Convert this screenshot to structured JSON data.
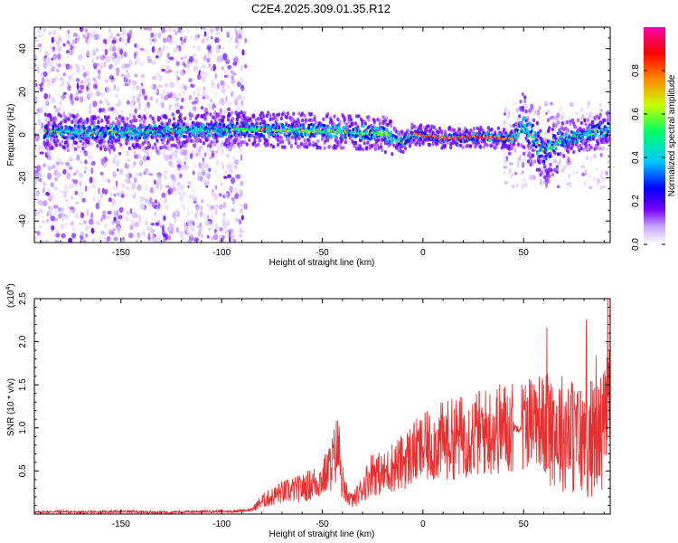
{
  "title": "C2E4.2025.309.01.35.R12",
  "chart_data": [
    {
      "type": "heatmap",
      "xlabel": "Height of straight line (km)",
      "ylabel": "Frequency (Hz)",
      "xlim": [
        -193,
        93
      ],
      "ylim": [
        -50,
        50
      ],
      "xticks": [
        -150,
        -100,
        -50,
        0,
        50
      ],
      "yticks": [
        -40,
        -20,
        0,
        20,
        40
      ],
      "colorbar": {
        "label": "Normalized spectral amplitude",
        "range": [
          0,
          1
        ],
        "ticks": [
          0.0,
          0.2,
          0.4,
          0.6,
          0.8
        ],
        "tick_labels": [
          "0.0",
          "0.2",
          "0.4",
          "0.6",
          "0.8"
        ],
        "colors": [
          "#ffffff",
          "#b388ff",
          "#6a00ff",
          "#0000ff",
          "#00c8ff",
          "#00ff66",
          "#c8ff00",
          "#ff8800",
          "#ff0000",
          "#ff00aa"
        ]
      },
      "ridge": [
        {
          "x": -180,
          "f": 1.5
        },
        {
          "x": -150,
          "f": 1.0
        },
        {
          "x": -120,
          "f": 2.0
        },
        {
          "x": -90,
          "f": 2.5
        },
        {
          "x": -60,
          "f": 2.0
        },
        {
          "x": -40,
          "f": 1.5
        },
        {
          "x": -20,
          "f": 0.5
        },
        {
          "x": -10,
          "f": -3.5
        },
        {
          "x": -5,
          "f": 0.5
        },
        {
          "x": 10,
          "f": -1.5
        },
        {
          "x": 30,
          "f": -1.0
        },
        {
          "x": 45,
          "f": -2.0
        },
        {
          "x": 50,
          "f": 5.0
        },
        {
          "x": 60,
          "f": -8.0
        },
        {
          "x": 70,
          "f": -2.0
        },
        {
          "x": 80,
          "f": 0.0
        },
        {
          "x": 92,
          "f": 3.0
        }
      ]
    },
    {
      "type": "line",
      "xlabel": "Height of straight line (km)",
      "ylabel": "SNR (10 * v/v)",
      "yscale_label": "(x10^4)",
      "xlim": [
        -193,
        93
      ],
      "ylim": [
        0,
        2.5
      ],
      "xticks": [
        -150,
        -100,
        -50,
        0,
        50
      ],
      "yticks": [
        0.5,
        1.0,
        1.5,
        2.0,
        2.5
      ],
      "ytick_labels": [
        "0.5",
        "1.0",
        "1.5",
        "2.0",
        "2.5"
      ],
      "color": "#e83030",
      "series": [
        {
          "x": [
            -193,
            -180,
            -170,
            -150,
            -130,
            -110,
            -95,
            -85,
            -80,
            -70,
            -60,
            -50,
            -45,
            -42,
            -40,
            -35,
            -30,
            -25,
            -20,
            -15,
            -10,
            -5,
            0,
            10,
            20,
            30,
            40,
            48,
            50,
            55,
            60,
            65,
            70,
            75,
            80,
            85,
            90,
            93
          ],
          "y": [
            0.02,
            0.03,
            0.02,
            0.03,
            0.02,
            0.03,
            0.03,
            0.05,
            0.15,
            0.25,
            0.3,
            0.4,
            0.6,
            0.8,
            0.3,
            0.15,
            0.3,
            0.5,
            0.45,
            0.55,
            0.6,
            0.7,
            0.75,
            0.85,
            0.9,
            0.95,
            1.0,
            1.0,
            1.05,
            1.15,
            1.05,
            1.0,
            0.95,
            0.9,
            0.85,
            0.9,
            1.0,
            1.4
          ]
        }
      ]
    }
  ]
}
